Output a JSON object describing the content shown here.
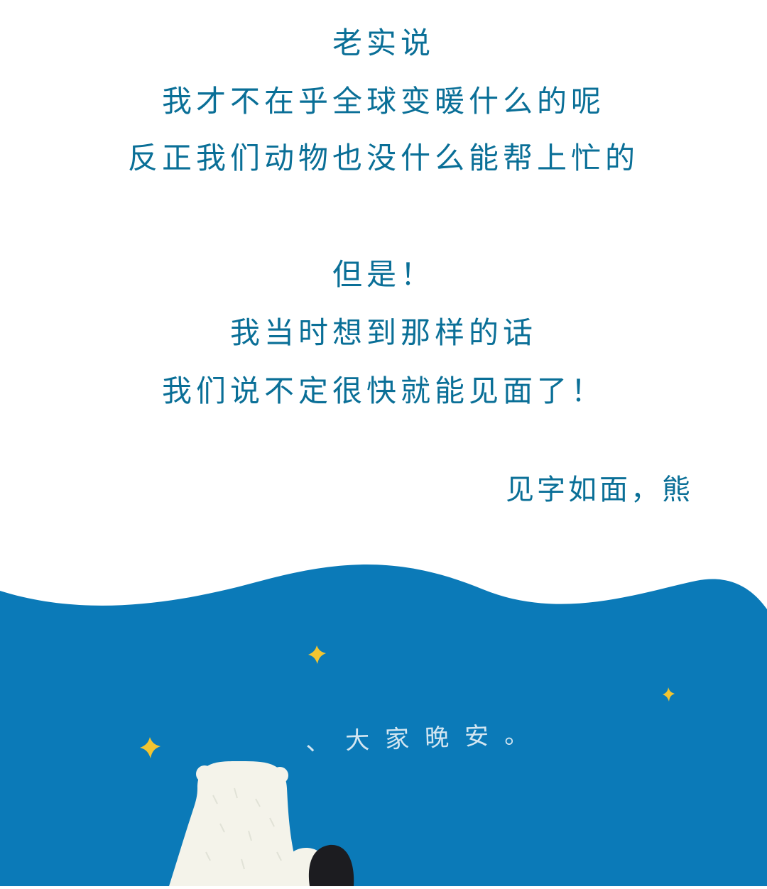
{
  "letter": {
    "paragraph1": [
      "老实说",
      "我才不在乎全球变暖什么的呢",
      "反正我们动物也没什么能帮上忙的"
    ],
    "paragraph2": [
      "但是！",
      "我当时想到那样的话",
      "我们说不定很快就能见面了！"
    ],
    "signature": "见字如面，熊"
  },
  "illustration": {
    "handwritten_text": "、大家晚安。",
    "colors": {
      "sea": "#0b7ab8",
      "text": "#0a6f97",
      "stars": "#f2c531",
      "bear": "#f4f3ea",
      "penguin": "#1c1c20"
    }
  }
}
